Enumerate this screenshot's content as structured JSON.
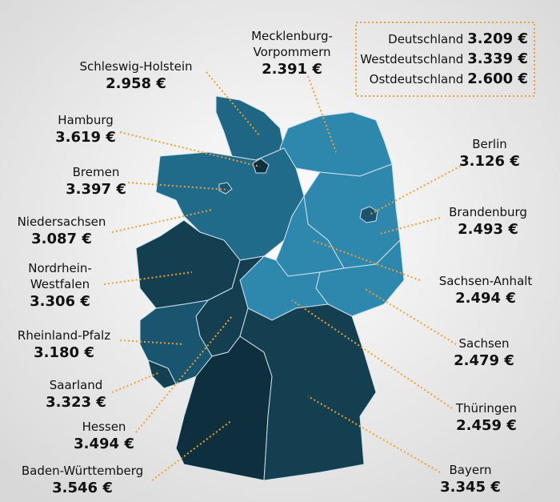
{
  "states": [
    {
      "name": [
        "Schleswig-Holstein"
      ],
      "value": "2.958 €"
    },
    {
      "name": [
        "Mecklenburg-",
        "Vorpommern"
      ],
      "value": "2.391 €"
    },
    {
      "name": [
        "Hamburg"
      ],
      "value": "3.619 €"
    },
    {
      "name": [
        "Bremen"
      ],
      "value": "3.397 €"
    },
    {
      "name": [
        "Niedersachsen"
      ],
      "value": "3.087 €"
    },
    {
      "name": [
        "Nordrhein-",
        "Westfalen"
      ],
      "value": "3.306 €"
    },
    {
      "name": [
        "Rheinland-Pfalz"
      ],
      "value": "3.180 €"
    },
    {
      "name": [
        "Saarland"
      ],
      "value": "3.323 €"
    },
    {
      "name": [
        "Hessen"
      ],
      "value": "3.494 €"
    },
    {
      "name": [
        "Baden-Württemberg"
      ],
      "value": "3.546 €"
    },
    {
      "name": [
        "Berlin"
      ],
      "value": "3.126 €"
    },
    {
      "name": [
        "Brandenburg"
      ],
      "value": "2.493 €"
    },
    {
      "name": [
        "Sachsen-Anhalt"
      ],
      "value": "2.494 €"
    },
    {
      "name": [
        "Sachsen"
      ],
      "value": "2.479 €"
    },
    {
      "name": [
        "Thüringen"
      ],
      "value": "2.459 €"
    },
    {
      "name": [
        "Bayern"
      ],
      "value": "3.345 €"
    }
  ],
  "summary": [
    {
      "name": "Deutschland",
      "value": "3.209 €"
    },
    {
      "name": "Westdeutschland",
      "value": "3.339 €"
    },
    {
      "name": "Ostdeutschland",
      "value": "2.600 €"
    }
  ]
}
